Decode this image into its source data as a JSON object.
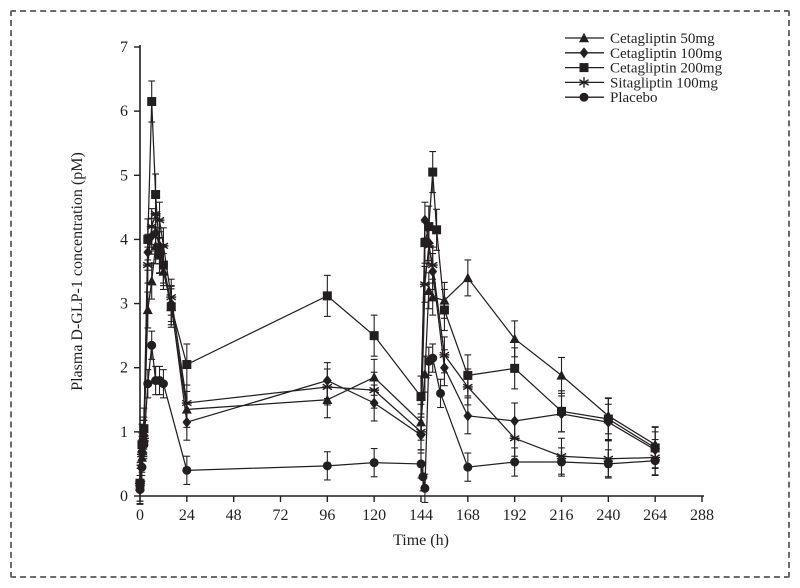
{
  "figure": {
    "background": "#ffffff",
    "frame_border_color": "#6b6b6b",
    "ink_color": "#231f20"
  },
  "chart_data": {
    "type": "line",
    "title": "",
    "xlabel": "Time (h)",
    "ylabel": "Plasma D-GLP-1 concentration (pM)",
    "xlim": [
      0,
      288
    ],
    "ylim": [
      0,
      7
    ],
    "x_ticks": [
      0,
      24,
      48,
      72,
      96,
      120,
      144,
      168,
      192,
      216,
      240,
      264,
      288
    ],
    "y_ticks": [
      0,
      1,
      2,
      3,
      4,
      5,
      6,
      7
    ],
    "grid": false,
    "legend_position": "top-right-inside",
    "series": [
      {
        "name": "Cetagliptin 50mg",
        "marker": "triangle",
        "err": 0.28,
        "x": [
          0,
          1,
          2,
          4,
          6,
          8,
          10,
          12,
          16,
          24,
          96,
          120,
          144,
          146,
          148,
          150,
          156,
          168,
          192,
          216,
          240,
          264
        ],
        "y": [
          0.15,
          0.6,
          0.9,
          2.9,
          3.35,
          3.9,
          3.75,
          3.5,
          2.95,
          1.35,
          1.5,
          1.85,
          1.15,
          1.9,
          3.2,
          3.1,
          3.05,
          3.4,
          2.45,
          1.88,
          1.25,
          0.8
        ]
      },
      {
        "name": "Cetagliptin 100mg",
        "marker": "diamond",
        "err": 0.28,
        "x": [
          0,
          1,
          2,
          4,
          6,
          8,
          10,
          12,
          16,
          24,
          96,
          120,
          144,
          146,
          148,
          150,
          156,
          168,
          192,
          216,
          240,
          264
        ],
        "y": [
          0.2,
          0.7,
          0.95,
          3.8,
          4.05,
          4.1,
          3.9,
          3.6,
          3.0,
          1.15,
          1.8,
          1.45,
          0.95,
          4.3,
          3.95,
          3.5,
          2.0,
          1.25,
          1.17,
          1.28,
          1.15,
          0.72
        ]
      },
      {
        "name": "Cetagliptin 200mg",
        "marker": "square",
        "err": 0.32,
        "x": [
          0,
          1,
          2,
          4,
          6,
          8,
          10,
          12,
          16,
          24,
          96,
          120,
          144,
          146,
          148,
          150,
          152,
          156,
          168,
          192,
          216,
          240,
          264
        ],
        "y": [
          0.2,
          0.8,
          1.05,
          4.0,
          6.15,
          4.7,
          3.8,
          3.6,
          2.95,
          2.05,
          3.12,
          2.5,
          1.55,
          3.95,
          4.2,
          5.05,
          4.15,
          2.9,
          1.88,
          1.99,
          1.32,
          1.2,
          0.75
        ]
      },
      {
        "name": "Sitagliptin 100mg",
        "marker": "asterisk",
        "err": 0.28,
        "x": [
          0,
          1,
          2,
          4,
          6,
          8,
          10,
          12,
          16,
          24,
          96,
          120,
          144,
          146,
          148,
          150,
          156,
          168,
          192,
          216,
          240,
          264
        ],
        "y": [
          0.2,
          0.65,
          0.9,
          3.6,
          4.2,
          4.4,
          4.3,
          3.9,
          3.1,
          1.45,
          1.7,
          1.65,
          1.0,
          3.3,
          3.9,
          3.6,
          2.2,
          1.7,
          0.9,
          0.62,
          0.58,
          0.6
        ]
      },
      {
        "name": "Placebo",
        "marker": "circle",
        "err": 0.22,
        "x": [
          0,
          1,
          2,
          4,
          6,
          8,
          10,
          12,
          24,
          96,
          120,
          144,
          145,
          146,
          148,
          150,
          154,
          168,
          192,
          216,
          240,
          264
        ],
        "y": [
          0.1,
          0.45,
          0.8,
          1.75,
          2.35,
          1.8,
          1.8,
          1.75,
          0.4,
          0.47,
          0.52,
          0.5,
          0.3,
          0.12,
          2.1,
          2.15,
          1.6,
          0.45,
          0.53,
          0.53,
          0.5,
          0.55
        ]
      }
    ]
  }
}
